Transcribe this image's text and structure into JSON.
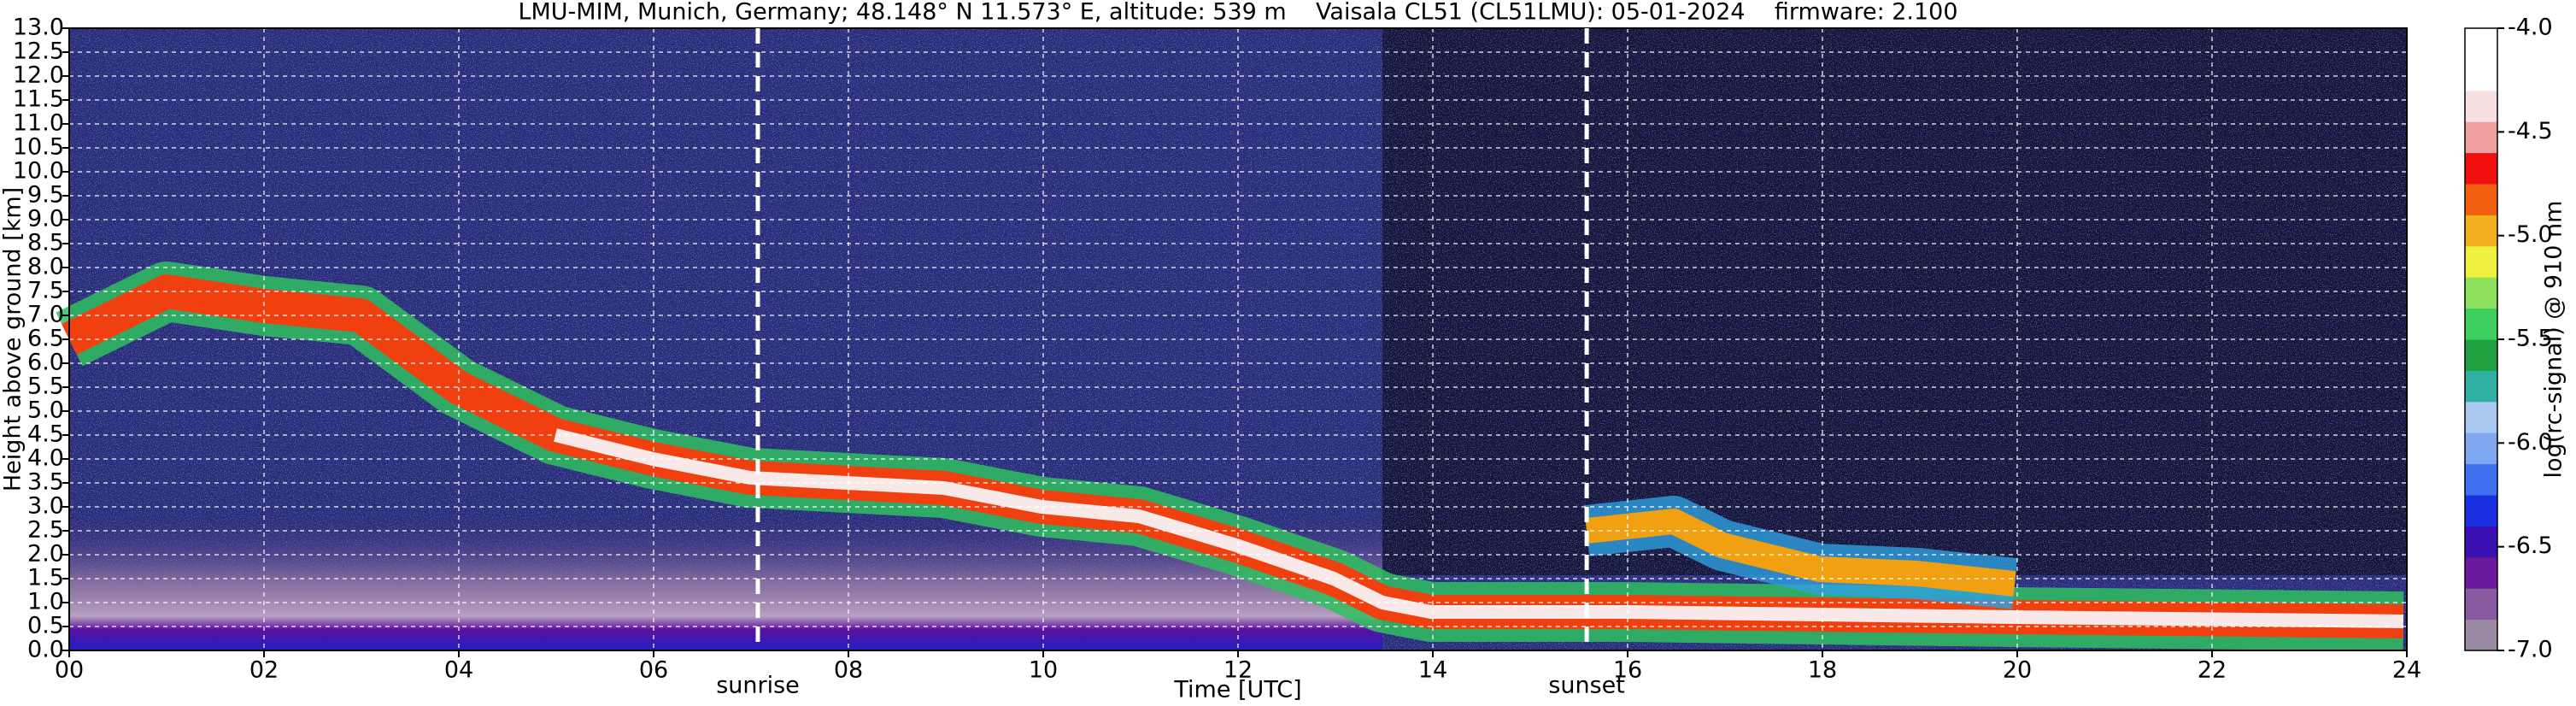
{
  "chart_data": {
    "type": "heatmap",
    "title": "LMU-MIM, Munich, Germany; 48.148° N 11.573° E, altitude: 539 m    Vaisala CL51 (CL51LMU): 05-01-2024    firmware: 2.100",
    "xlabel": "Time [UTC]",
    "ylabel": "Height above ground [km]",
    "colorbar_label": "log(rc-signal) @ 910 nm",
    "xlim": [
      0,
      24
    ],
    "xticks": [
      {
        "value": 0,
        "label": "00"
      },
      {
        "value": 2,
        "label": "02"
      },
      {
        "value": 4,
        "label": "04"
      },
      {
        "value": 6,
        "label": "06"
      },
      {
        "value": 8,
        "label": "08"
      },
      10,
      12,
      14,
      16,
      18,
      20,
      22,
      24
    ],
    "ylim": [
      0,
      13
    ],
    "yticks": [
      {
        "value": 0,
        "label": "0.0"
      },
      0.5,
      {
        "value": 1,
        "label": "1.0"
      },
      1.5,
      {
        "value": 2,
        "label": "2.0"
      },
      2.5,
      {
        "value": 3,
        "label": "3.0"
      },
      3.5,
      {
        "value": 4,
        "label": "4.0"
      },
      4.5,
      {
        "value": 5,
        "label": "5.0"
      },
      5.5,
      {
        "value": 6,
        "label": "6.0"
      },
      6.5,
      {
        "value": 7,
        "label": "7.0"
      },
      7.5,
      {
        "value": 8,
        "label": "8.0"
      },
      8.5,
      {
        "value": 9,
        "label": "9.0"
      },
      9.5,
      {
        "value": 10,
        "label": "10.0"
      },
      10.5,
      {
        "value": 11,
        "label": "11.0"
      },
      11.5,
      {
        "value": 12,
        "label": "12.0"
      },
      12.5,
      {
        "value": 13,
        "label": "13.0"
      }
    ],
    "clim": [
      -7,
      -4
    ],
    "cticks": [
      {
        "value": -4,
        "label": "-4.0"
      },
      -4.5,
      {
        "value": -5,
        "label": "-5.0"
      },
      -5.5,
      {
        "value": -6,
        "label": "-6.0"
      },
      -6.5,
      {
        "value": -7,
        "label": "-7.0"
      }
    ],
    "colormap": [
      "#9a8aa2",
      "#8a5aa0",
      "#6a1a9a",
      "#3a10b0",
      "#1a30e0",
      "#4070f0",
      "#80a8f0",
      "#a8c8f0",
      "#30b0a0",
      "#20a040",
      "#40d060",
      "#90e060",
      "#f0f040",
      "#f0b020",
      "#f06010",
      "#f01010",
      "#f0a0a0",
      "#f8e0e0",
      "#ffffff",
      "#ffffff"
    ],
    "grid": true,
    "annotations": [
      {
        "label": "sunrise",
        "x": 7.07
      },
      {
        "label": "sunset",
        "x": 15.58
      }
    ]
  }
}
